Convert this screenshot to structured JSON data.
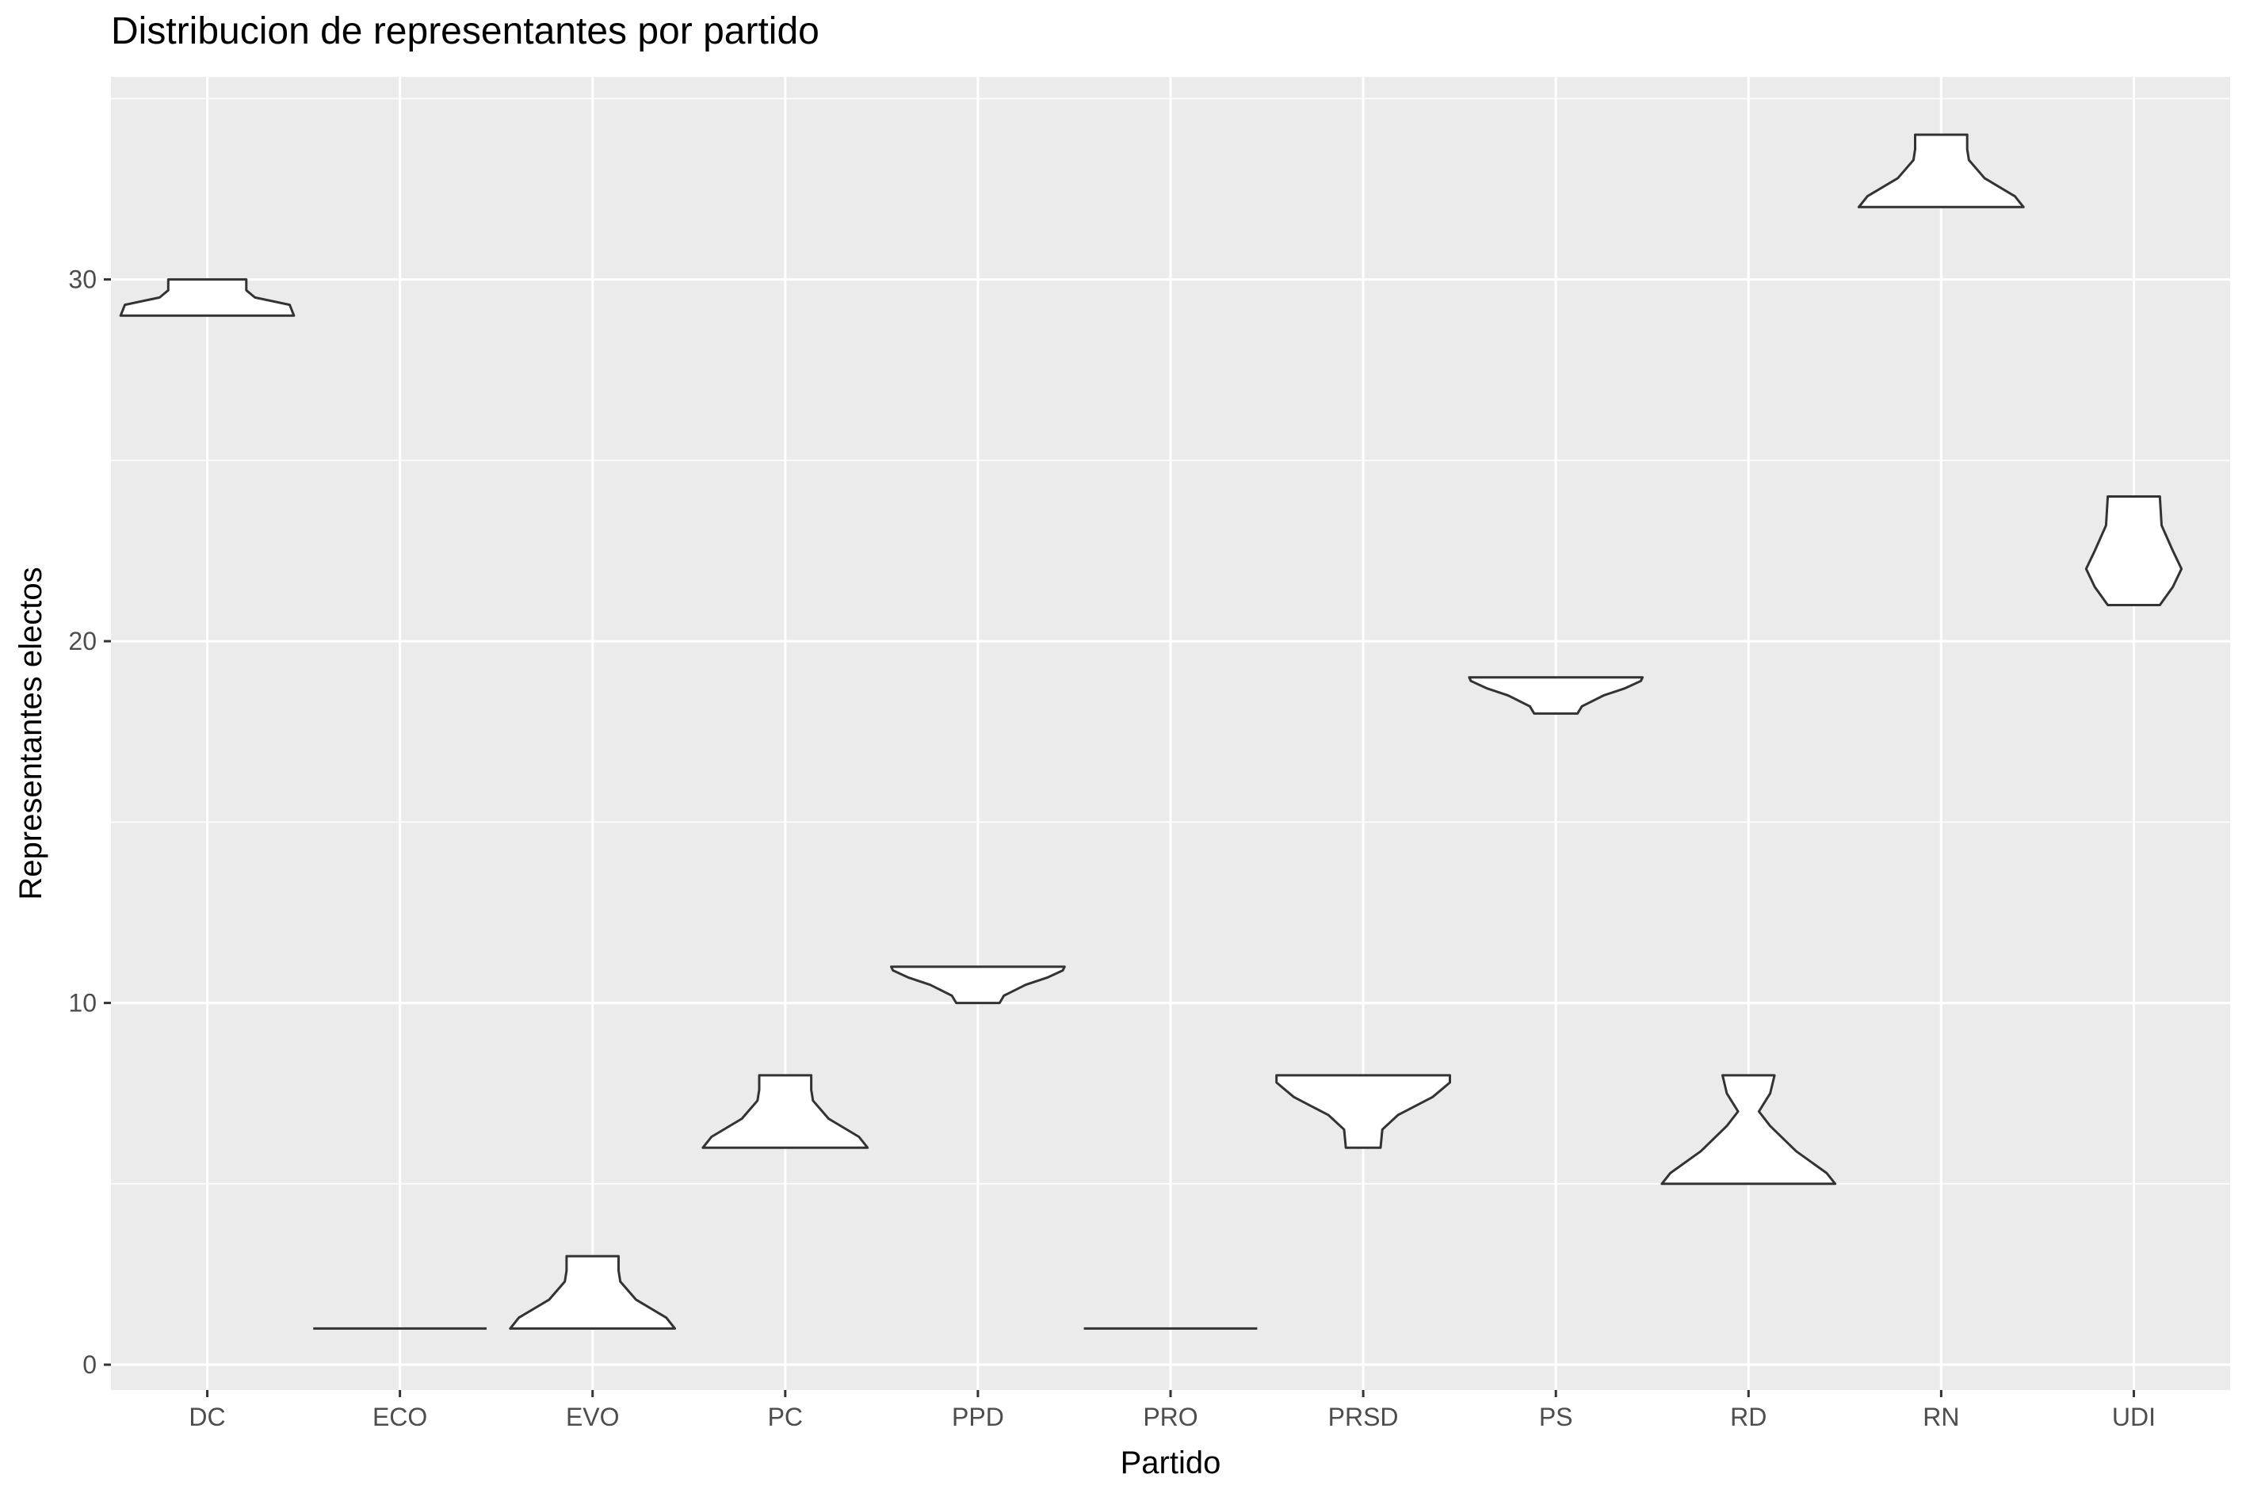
{
  "chart_data": {
    "type": "violin",
    "title": "Distribucion de representantes por partido",
    "xlabel": "Partido",
    "ylabel": "Representantes electos",
    "categories": [
      "DC",
      "ECO",
      "EVO",
      "PC",
      "PPD",
      "PRO",
      "PRSD",
      "PS",
      "RD",
      "RN",
      "UDI"
    ],
    "y_ticks": [
      0,
      10,
      20,
      30
    ],
    "ylim": [
      -0.7,
      35.6
    ],
    "grid": true,
    "legend": "none",
    "colors": {
      "panel_background": "#ebebeb",
      "grid": "#ffffff",
      "violin_fill": "#ffffff",
      "violin_outline": "#333333",
      "tick_text": "#4d4d4d"
    },
    "violins": [
      {
        "category": "DC",
        "min": 29,
        "max": 30,
        "profile": [
          [
            29,
            1.0
          ],
          [
            29.3,
            0.95
          ],
          [
            29.5,
            0.55
          ],
          [
            29.7,
            0.45
          ],
          [
            30,
            0.45
          ]
        ]
      },
      {
        "category": "ECO",
        "min": 1,
        "max": 1,
        "profile": [
          [
            1,
            1.0
          ]
        ]
      },
      {
        "category": "EVO",
        "min": 1,
        "max": 3,
        "profile": [
          [
            1,
            0.95
          ],
          [
            1.3,
            0.85
          ],
          [
            1.8,
            0.5
          ],
          [
            2.3,
            0.32
          ],
          [
            2.6,
            0.3
          ],
          [
            3,
            0.3
          ]
        ]
      },
      {
        "category": "PC",
        "min": 6,
        "max": 8,
        "profile": [
          [
            6,
            0.95
          ],
          [
            6.3,
            0.85
          ],
          [
            6.8,
            0.5
          ],
          [
            7.3,
            0.32
          ],
          [
            7.6,
            0.3
          ],
          [
            8,
            0.3
          ]
        ]
      },
      {
        "category": "PPD",
        "min": 10,
        "max": 11,
        "profile": [
          [
            10,
            0.25
          ],
          [
            10.2,
            0.3
          ],
          [
            10.5,
            0.55
          ],
          [
            10.7,
            0.8
          ],
          [
            10.9,
            0.98
          ],
          [
            11,
            1.0
          ]
        ]
      },
      {
        "category": "PRO",
        "min": 1,
        "max": 1,
        "profile": [
          [
            1,
            1.0
          ]
        ]
      },
      {
        "category": "PRSD",
        "min": 6,
        "max": 8,
        "profile": [
          [
            6,
            0.2
          ],
          [
            6.5,
            0.22
          ],
          [
            6.9,
            0.4
          ],
          [
            7.4,
            0.8
          ],
          [
            7.8,
            1.0
          ],
          [
            8,
            1.0
          ]
        ]
      },
      {
        "category": "PS",
        "min": 18,
        "max": 19,
        "profile": [
          [
            18,
            0.25
          ],
          [
            18.2,
            0.3
          ],
          [
            18.5,
            0.55
          ],
          [
            18.7,
            0.8
          ],
          [
            18.9,
            0.98
          ],
          [
            19,
            1.0
          ]
        ]
      },
      {
        "category": "RD",
        "min": 5,
        "max": 8,
        "profile": [
          [
            5,
            1.0
          ],
          [
            5.3,
            0.9
          ],
          [
            5.9,
            0.55
          ],
          [
            6.6,
            0.25
          ],
          [
            7.0,
            0.12
          ],
          [
            7.5,
            0.25
          ],
          [
            8,
            0.3
          ]
        ]
      },
      {
        "category": "RN",
        "min": 32,
        "max": 34,
        "profile": [
          [
            32,
            0.95
          ],
          [
            32.3,
            0.85
          ],
          [
            32.8,
            0.5
          ],
          [
            33.3,
            0.32
          ],
          [
            33.6,
            0.3
          ],
          [
            34,
            0.3
          ]
        ]
      },
      {
        "category": "UDI",
        "min": 21,
        "max": 24,
        "profile": [
          [
            21,
            0.3
          ],
          [
            21.5,
            0.45
          ],
          [
            22,
            0.55
          ],
          [
            22.5,
            0.45
          ],
          [
            23.2,
            0.32
          ],
          [
            24,
            0.3
          ]
        ]
      }
    ]
  }
}
